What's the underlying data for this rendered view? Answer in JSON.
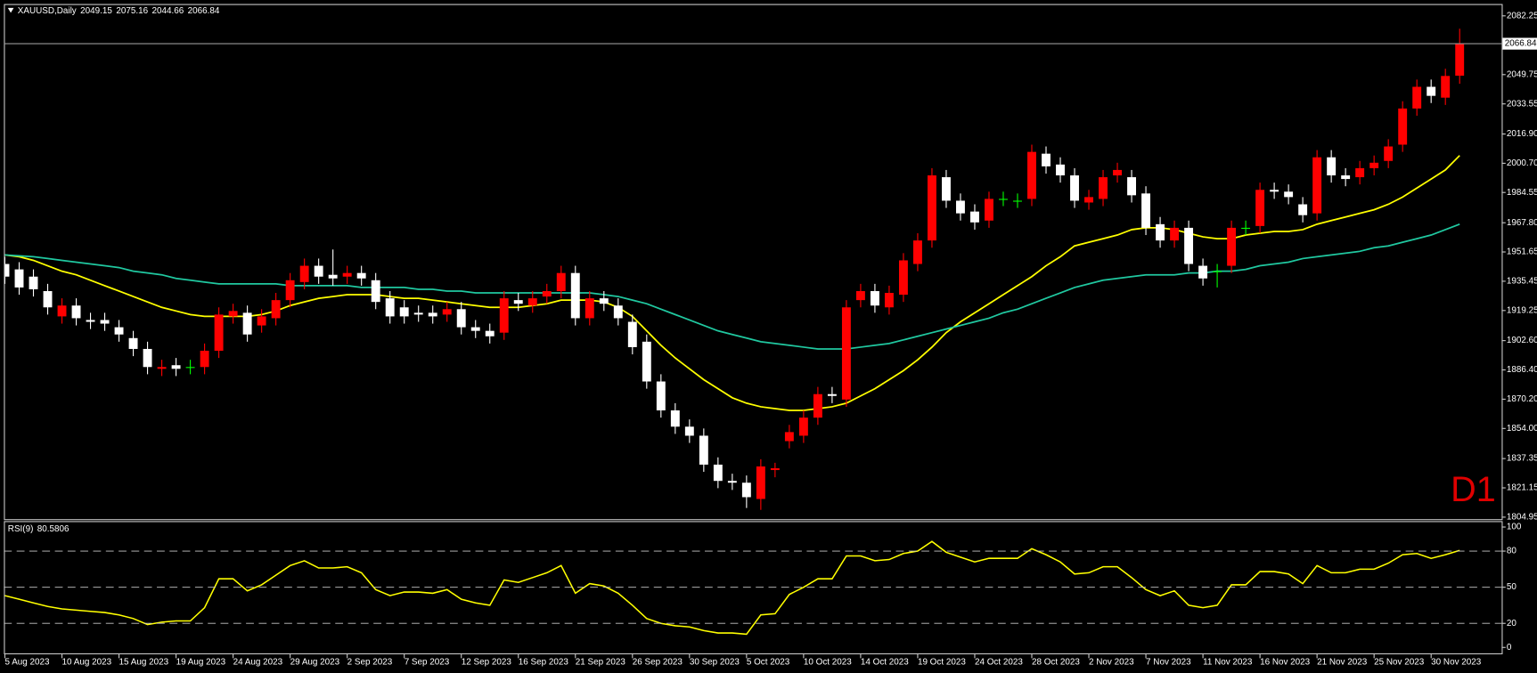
{
  "chart_data": {
    "type": "candlestick",
    "symbol": "XAUUSD,Daily",
    "timeframe": "D1",
    "up_color": "#ff0000",
    "down_color": "#ffffff",
    "doji_color": "#00ff00",
    "categories": [
      "5 Aug 2023",
      null,
      null,
      null,
      "10 Aug 2023",
      null,
      null,
      null,
      "15 Aug 2023",
      null,
      null,
      null,
      "19 Aug 2023",
      null,
      null,
      null,
      "24 Aug 2023",
      null,
      null,
      null,
      "29 Aug 2023",
      null,
      null,
      null,
      "2 Sep 2023",
      null,
      null,
      null,
      "7 Sep 2023",
      null,
      null,
      null,
      "12 Sep 2023",
      null,
      null,
      null,
      "16 Sep 2023",
      null,
      null,
      null,
      "21 Sep 2023",
      null,
      null,
      null,
      "26 Sep 2023",
      null,
      null,
      null,
      "30 Sep 2023",
      null,
      null,
      null,
      "5 Oct 2023",
      null,
      null,
      null,
      "10 Oct 2023",
      null,
      null,
      null,
      "14 Oct 2023",
      null,
      null,
      null,
      "19 Oct 2023",
      null,
      null,
      null,
      "24 Oct 2023",
      null,
      null,
      null,
      "28 Oct 2023",
      null,
      null,
      null,
      "2 Nov 2023",
      null,
      null,
      null,
      "7 Nov 2023",
      null,
      null,
      null,
      "11 Nov 2023",
      null,
      null,
      null,
      "16 Nov 2023",
      null,
      null,
      null,
      "21 Nov 2023",
      null,
      null,
      null,
      "25 Nov 2023",
      null,
      null,
      null,
      "30 Nov 2023",
      null,
      null
    ],
    "open": [
      1945,
      1942,
      1938,
      1930,
      1916,
      1922,
      1914,
      1914,
      1910,
      1904,
      1898,
      1887,
      1889,
      1888,
      1888,
      1897,
      1916,
      1918,
      1911,
      1915,
      1925,
      1935,
      1944,
      1939,
      1938,
      1940,
      1936,
      1926,
      1921,
      1918,
      1918,
      1917,
      1920,
      1910,
      1908,
      1907,
      1925,
      1922,
      1927,
      1930,
      1940,
      1915,
      1926,
      1922,
      1913,
      1902,
      1880,
      1864,
      1855,
      1850,
      1834,
      1825,
      1824,
      1815,
      1831,
      1847,
      1850,
      1860,
      1873,
      1870,
      1925,
      1930,
      1921,
      1928,
      1945,
      1958,
      1993,
      1980,
      1974,
      1969,
      1981,
      1980,
      1981,
      2006,
      2000,
      1994,
      1979,
      1981,
      1994,
      1993,
      1984,
      1967,
      1958,
      1965,
      1944,
      1941,
      1944,
      1965,
      1966,
      1986,
      1985,
      1978,
      1973,
      2004,
      1994,
      1993,
      1998,
      2002,
      2011,
      2031,
      2043,
      2037,
      2049.15
    ],
    "high": [
      1949,
      1946,
      1942,
      1934,
      1926,
      1926,
      1918,
      1918,
      1914,
      1908,
      1902,
      1892,
      1893,
      1892,
      1901,
      1921,
      1923,
      1922,
      1920,
      1929,
      1940,
      1948,
      1948,
      1953,
      1944,
      1944,
      1940,
      1930,
      1925,
      1922,
      1922,
      1924,
      1924,
      1914,
      1912,
      1930,
      1929,
      1930,
      1934,
      1944,
      1944,
      1930,
      1930,
      1926,
      1917,
      1906,
      1884,
      1868,
      1859,
      1854,
      1838,
      1829,
      1828,
      1837,
      1835,
      1856,
      1864,
      1877,
      1877,
      1925,
      1934,
      1934,
      1933,
      1951,
      1962,
      1998,
      1997,
      1984,
      1978,
      1985,
      1985,
      1984,
      2011,
      2010,
      2004,
      1998,
      1986,
      1997,
      2001,
      1997,
      1988,
      1971,
      1969,
      1969,
      1948,
      1945,
      1969,
      1969,
      1990,
      1990,
      1989,
      1982,
      2008,
      2008,
      1998,
      2002,
      2005,
      2014,
      2035,
      2047,
      2047,
      2053,
      2075.16
    ],
    "low": [
      1934,
      1928,
      1927,
      1917,
      1912,
      1911,
      1909,
      1908,
      1902,
      1894,
      1884,
      1883,
      1883,
      1884,
      1884,
      1893,
      1912,
      1902,
      1907,
      1911,
      1921,
      1931,
      1934,
      1933,
      1934,
      1933,
      1920,
      1912,
      1912,
      1913,
      1912,
      1913,
      1906,
      1904,
      1901,
      1903,
      1919,
      1918,
      1923,
      1926,
      1911,
      1911,
      1919,
      1911,
      1895,
      1876,
      1860,
      1851,
      1846,
      1830,
      1821,
      1820,
      1810,
      1809,
      1827,
      1843,
      1846,
      1856,
      1868,
      1866,
      1921,
      1918,
      1917,
      1924,
      1941,
      1954,
      1976,
      1969,
      1964,
      1965,
      1977,
      1976,
      1977,
      1995,
      1990,
      1976,
      1975,
      1977,
      1990,
      1979,
      1961,
      1954,
      1954,
      1941,
      1933,
      1932,
      1940,
      1961,
      1962,
      1981,
      1978,
      1968,
      1969,
      1990,
      1988,
      1989,
      1994,
      1998,
      2007,
      2027,
      2034,
      2033,
      2044.66
    ],
    "close": [
      1938,
      1932,
      1931,
      1921,
      1922,
      1915,
      1913,
      1912,
      1906,
      1898,
      1888,
      1888,
      1887,
      1888,
      1897,
      1917,
      1919,
      1906,
      1916,
      1925,
      1936,
      1944,
      1938,
      1937,
      1940,
      1937,
      1924,
      1916,
      1916,
      1917,
      1916,
      1920,
      1910,
      1908,
      1905,
      1926,
      1923,
      1926,
      1930,
      1940,
      1915,
      1926,
      1923,
      1915,
      1899,
      1880,
      1864,
      1855,
      1850,
      1834,
      1825,
      1824,
      1816,
      1833,
      1832,
      1852,
      1860,
      1873,
      1872,
      1921,
      1930,
      1922,
      1929,
      1947,
      1958,
      1994,
      1980,
      1973,
      1968,
      1981,
      1981,
      1980,
      2007,
      1999,
      1994,
      1980,
      1982,
      1993,
      1997,
      1983,
      1965,
      1958,
      1965,
      1945,
      1937,
      1941,
      1965,
      1965,
      1986,
      1985,
      1982,
      1972,
      2004,
      1994,
      1992,
      1998,
      2001,
      2010,
      2031,
      2043,
      2038,
      2049,
      2066.84
    ],
    "overlays": [
      {
        "color": "#ffff00",
        "values": [
          1950,
          1949,
          1947,
          1944,
          1941,
          1939,
          1936,
          1933,
          1930,
          1927,
          1924,
          1921,
          1919,
          1917,
          1916,
          1916,
          1916,
          1916,
          1917,
          1919,
          1922,
          1924,
          1926,
          1927,
          1928,
          1928,
          1928,
          1927,
          1926,
          1926,
          1925,
          1924,
          1923,
          1922,
          1921,
          1921,
          1921,
          1922,
          1923,
          1925,
          1925,
          1925,
          1924,
          1921,
          1916,
          1908,
          1900,
          1893,
          1887,
          1881,
          1876,
          1871,
          1868,
          1866,
          1865,
          1864,
          1864,
          1865,
          1866,
          1868,
          1872,
          1876,
          1881,
          1886,
          1892,
          1899,
          1907,
          1913,
          1918,
          1923,
          1928,
          1933,
          1938,
          1944,
          1949,
          1955,
          1957,
          1959,
          1961,
          1964,
          1965,
          1965,
          1964,
          1962,
          1960,
          1959,
          1959,
          1961,
          1962,
          1963,
          1963,
          1964,
          1967,
          1969,
          1971,
          1973,
          1975,
          1978,
          1982,
          1987,
          1992,
          1997,
          2005
        ]
      },
      {
        "color": "#20c8a0",
        "values": [
          1950,
          1949.5,
          1949,
          1948,
          1947,
          1946,
          1945,
          1944,
          1943,
          1941,
          1940,
          1939,
          1937,
          1936,
          1935,
          1934,
          1934,
          1934,
          1934,
          1934,
          1933,
          1933,
          1933,
          1933,
          1933,
          1932,
          1932,
          1932,
          1932,
          1931,
          1931,
          1930,
          1930,
          1929,
          1929,
          1929,
          1929,
          1929,
          1929,
          1929,
          1929,
          1929,
          1928,
          1927,
          1925,
          1923,
          1920,
          1917,
          1914,
          1911,
          1908,
          1906,
          1904,
          1902,
          1901,
          1900,
          1899,
          1898,
          1898,
          1898,
          1899,
          1900,
          1901,
          1903,
          1905,
          1907,
          1909,
          1911,
          1913,
          1915,
          1918,
          1920,
          1923,
          1926,
          1929,
          1932,
          1934,
          1936,
          1937,
          1938,
          1939,
          1939,
          1939,
          1940,
          1940,
          1941,
          1941,
          1942,
          1944,
          1945,
          1946,
          1948,
          1949,
          1950,
          1951,
          1952,
          1954,
          1955,
          1957,
          1959,
          1961,
          1964,
          1967
        ]
      }
    ],
    "ylim": [
      1803.3,
      2088.8
    ],
    "yticks": [
      2082.25,
      2049.75,
      2033.55,
      {
        "value": 2016.9,
        "label": "2016.90"
      },
      {
        "value": 2000.7,
        "label": "2000.70"
      },
      1984.55,
      {
        "value": 1967.8,
        "label": "1967.80"
      },
      1951.65,
      1935.45,
      1919.25,
      {
        "value": 1902.6,
        "label": "1902.60"
      },
      {
        "value": 1886.4,
        "label": "1886.40"
      },
      {
        "value": 1870.2,
        "label": "1870.20"
      },
      {
        "value": 1854,
        "label": "1854.00"
      },
      1837.35,
      1821.15,
      1804.95
    ],
    "rsi": {
      "label": "RSI(9)",
      "color": "#ffff00",
      "values": [
        43,
        40,
        37,
        34,
        32,
        31,
        30,
        29,
        27,
        24,
        19,
        21,
        22,
        22,
        33,
        57,
        57,
        47,
        52,
        60,
        68,
        72,
        66,
        66,
        67,
        62,
        48,
        43,
        46,
        46,
        45,
        48,
        40,
        37,
        35,
        56,
        54,
        58,
        62,
        68,
        45,
        53,
        51,
        45,
        35,
        24,
        20,
        18,
        17,
        14,
        12,
        12,
        11,
        27,
        28,
        44,
        50,
        57,
        57,
        76,
        76,
        72,
        73,
        78,
        80,
        88,
        79,
        75,
        71,
        74,
        74,
        74,
        82,
        77,
        71,
        61,
        62,
        67,
        67,
        58,
        48,
        43,
        47,
        35,
        33,
        35,
        52,
        52,
        63,
        63,
        61,
        53,
        68,
        62,
        62,
        65,
        65,
        70,
        77,
        78,
        74,
        77,
        80.5806
      ],
      "ylim": [
        -5.7,
        104.1
      ],
      "yticks": [
        100,
        80,
        50,
        20,
        0
      ],
      "levels": [
        80,
        50,
        20
      ]
    }
  }
}
